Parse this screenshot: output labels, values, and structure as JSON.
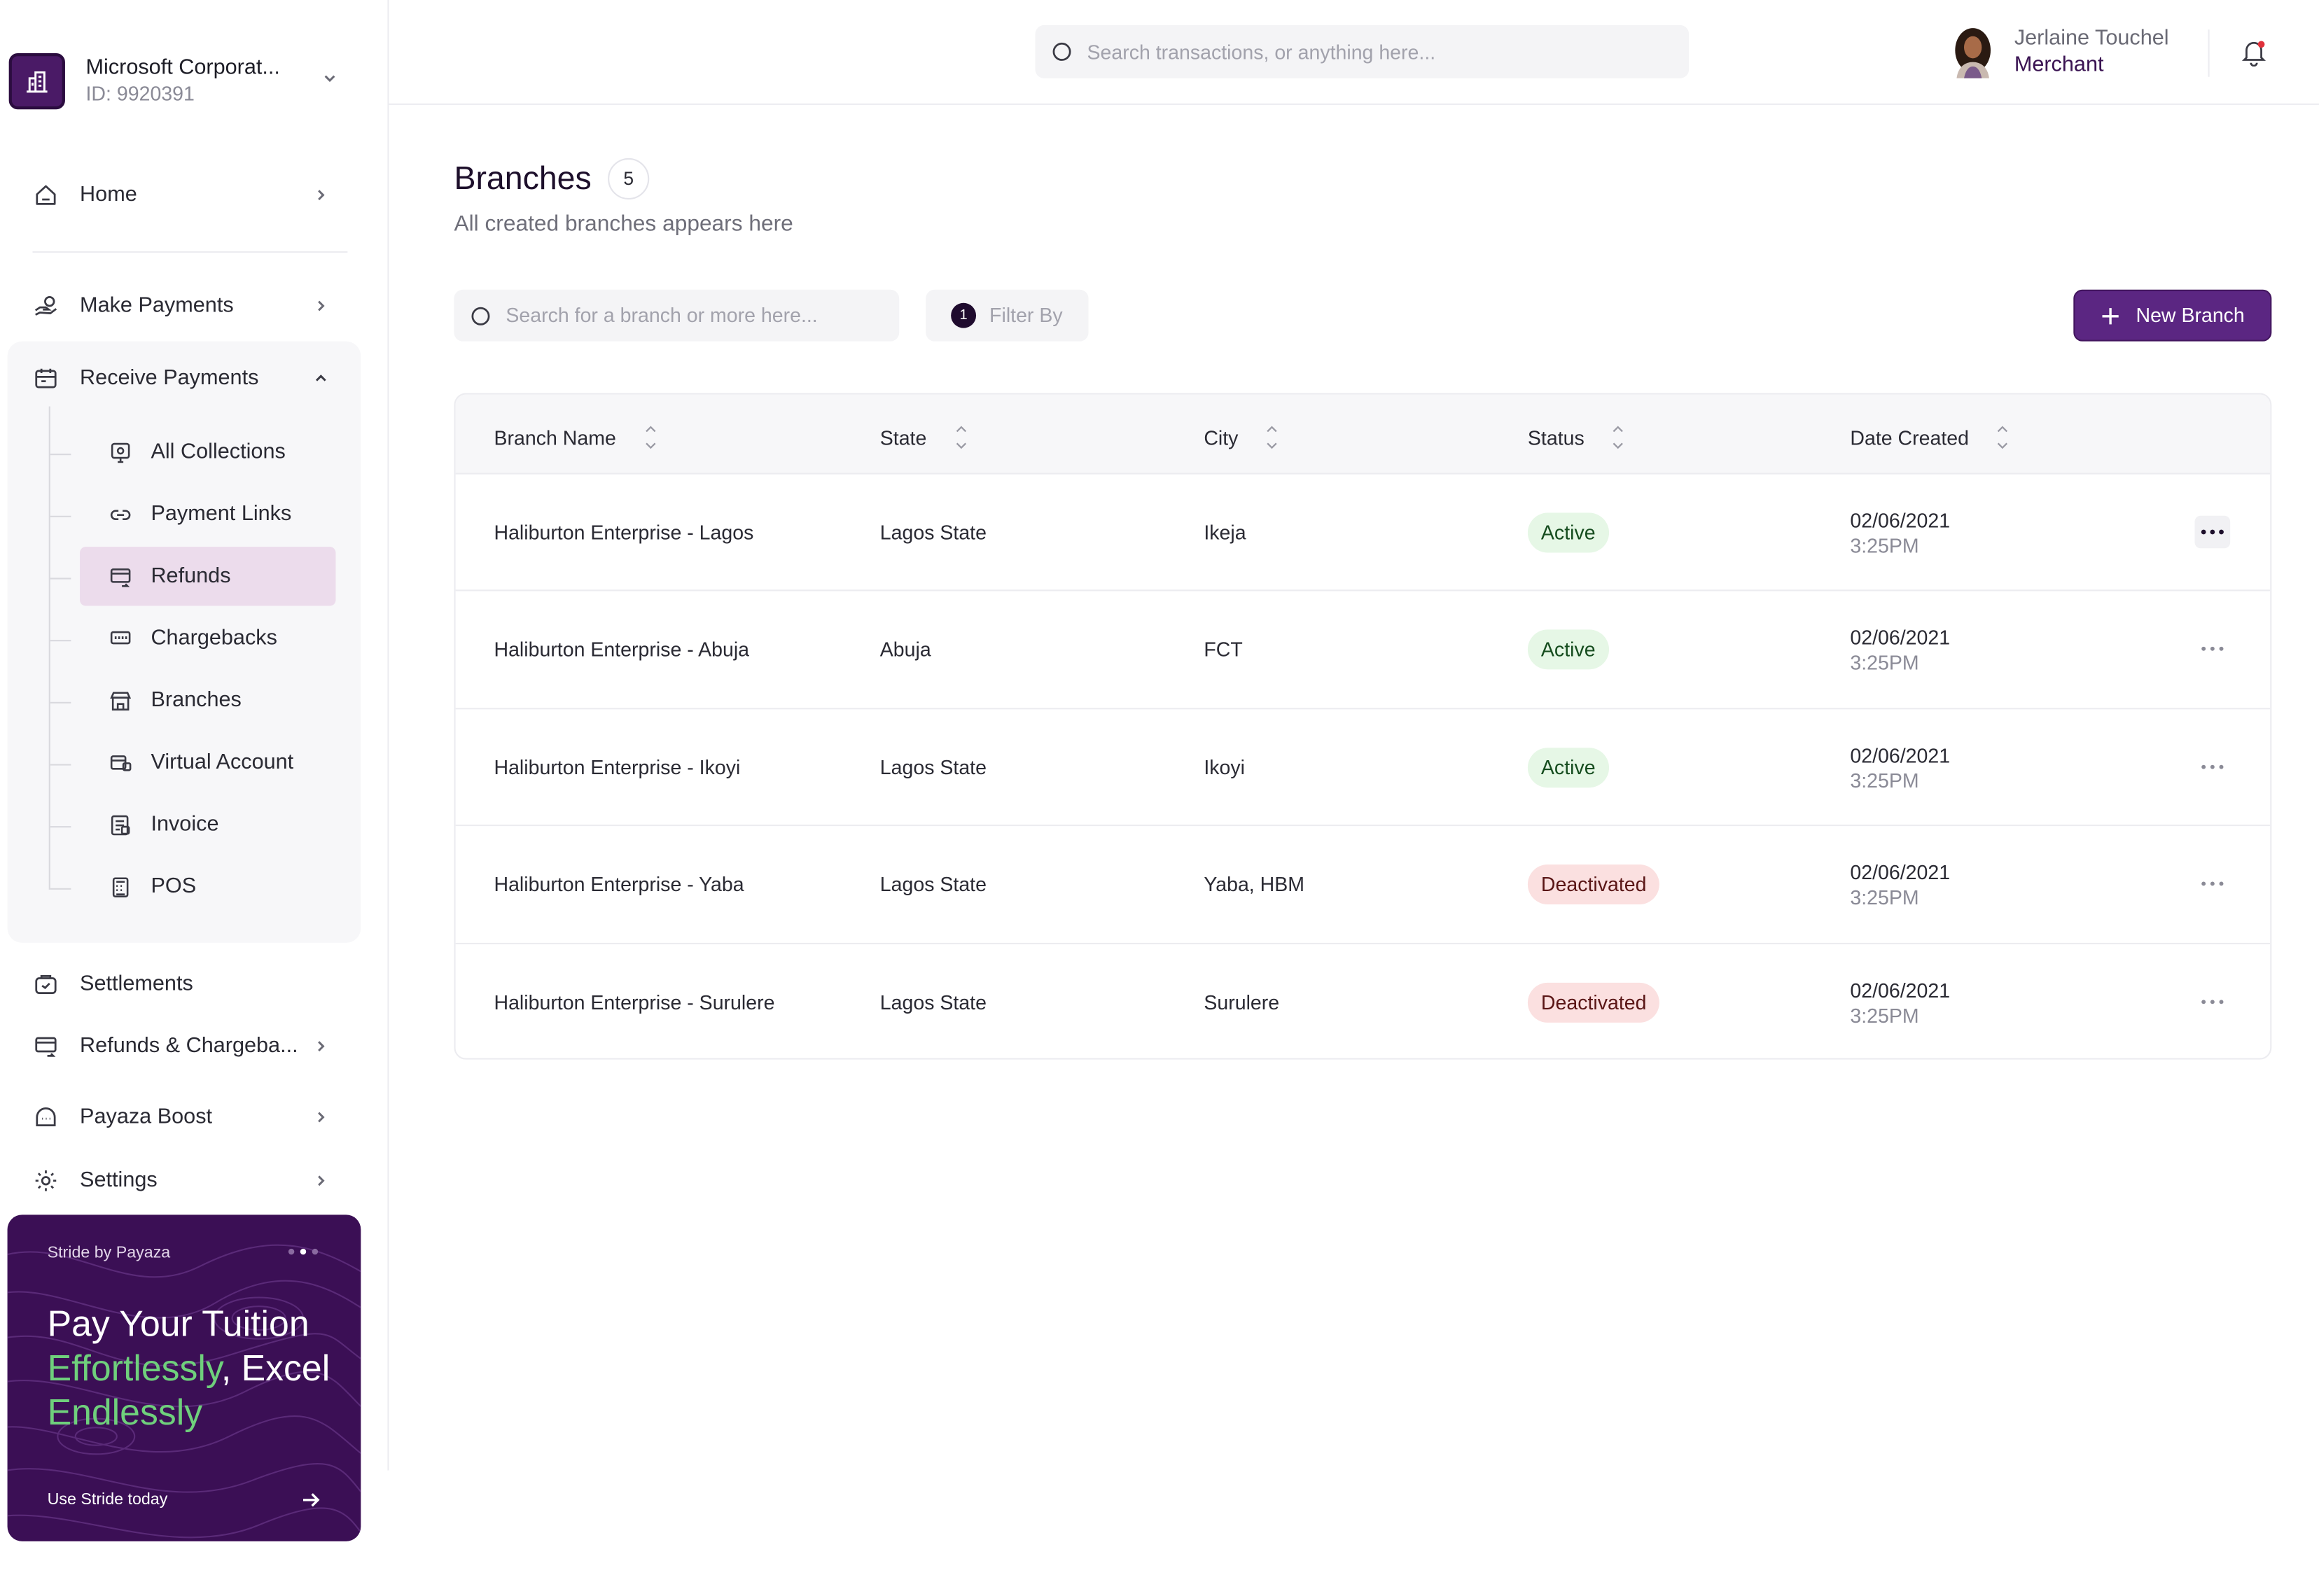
{
  "org": {
    "name": "Microsoft Corporat...",
    "id": "ID: 9920391"
  },
  "nav": {
    "home": "Home",
    "make_payments": "Make Payments",
    "receive_payments": "Receive Payments",
    "sub_items": [
      {
        "label": "All Collections",
        "icon": "collections-icon"
      },
      {
        "label": "Payment Links",
        "icon": "link-icon"
      },
      {
        "label": "Refunds",
        "icon": "refund-icon"
      },
      {
        "label": "Chargebacks",
        "icon": "chargeback-icon"
      },
      {
        "label": "Branches",
        "icon": "store-icon"
      },
      {
        "label": "Virtual Account",
        "icon": "virtual-account-icon"
      },
      {
        "label": "Invoice",
        "icon": "invoice-icon"
      },
      {
        "label": "POS",
        "icon": "pos-icon"
      }
    ],
    "settlements": "Settlements",
    "refunds_chargebacks": "Refunds & Chargeba...",
    "payaza_boost": "Payaza Boost",
    "settings": "Settings"
  },
  "promo": {
    "kicker": "Stride by Payaza",
    "title_1": "Pay Your Tuition ",
    "title_green_1": "Effortlessly",
    "title_2": ", Excel ",
    "title_green_2": "Endlessly",
    "cta": "Use Stride today"
  },
  "header": {
    "search_placeholder": "Search transactions, or anything here...",
    "user_name": "Jerlaine Touchel",
    "user_role": "Merchant"
  },
  "page": {
    "title": "Branches",
    "count": "5",
    "subtitle": "All created branches appears here",
    "search_placeholder": "Search for a branch or more here...",
    "filter_count": "1",
    "filter_label": "Filter By",
    "new_button": "New Branch"
  },
  "table": {
    "columns": [
      "Branch Name",
      "State",
      "City",
      "Status",
      "Date Created"
    ],
    "rows": [
      {
        "name": "Haliburton Enterprise - Lagos",
        "state": "Lagos State",
        "city": "Ikeja",
        "status": "Active",
        "date": "02/06/2021",
        "time": "3:25PM"
      },
      {
        "name": "Haliburton Enterprise - Abuja",
        "state": "Abuja",
        "city": "FCT",
        "status": "Active",
        "date": "02/06/2021",
        "time": "3:25PM"
      },
      {
        "name": "Haliburton Enterprise - Ikoyi",
        "state": "Lagos State",
        "city": "Ikoyi",
        "status": "Active",
        "date": "02/06/2021",
        "time": "3:25PM"
      },
      {
        "name": "Haliburton Enterprise - Yaba",
        "state": "Lagos State",
        "city": "Yaba, HBM",
        "status": "Deactivated",
        "date": "02/06/2021",
        "time": "3:25PM"
      },
      {
        "name": "Haliburton Enterprise - Surulere",
        "state": "Lagos State",
        "city": "Surulere",
        "status": "Deactivated",
        "date": "02/06/2021",
        "time": "3:25PM"
      }
    ]
  },
  "colors": {
    "brand": "#5b2682",
    "sidebar_active": "#ecdcec",
    "active_bg": "#e6f7e6",
    "deactivated_bg": "#fbe0e0",
    "promo_bg": "#3b0f55",
    "promo_accent": "#6fd07c"
  }
}
